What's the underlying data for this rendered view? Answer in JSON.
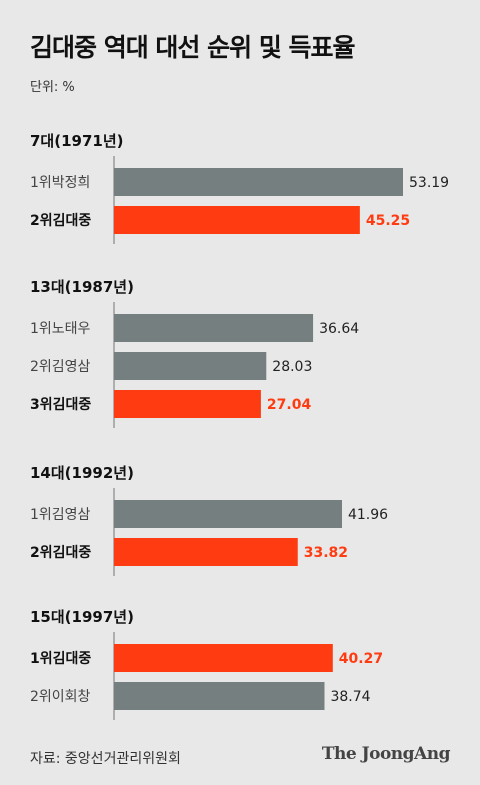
{
  "title": "김대중 역대 대선 순위 및 득표율",
  "unit": "단위: %",
  "source": "자료: 중앙선거관리위원회",
  "brand": "The JoongAng",
  "colors": {
    "highlight": "#ff3b12",
    "other": "#757f80",
    "axis": "#9a9a9a"
  },
  "chart_data": {
    "type": "bar",
    "orientation": "horizontal",
    "xlim": [
      0,
      60
    ],
    "groups": [
      {
        "label": "7대(1971년)",
        "bars": [
          {
            "label": "1위박정희",
            "value": 53.19,
            "highlight": false
          },
          {
            "label": "2위김대중",
            "value": 45.25,
            "highlight": true
          }
        ]
      },
      {
        "label": "13대(1987년)",
        "bars": [
          {
            "label": "1위노태우",
            "value": 36.64,
            "highlight": false
          },
          {
            "label": "2위김영삼",
            "value": 28.03,
            "highlight": false
          },
          {
            "label": "3위김대중",
            "value": 27.04,
            "highlight": true
          }
        ]
      },
      {
        "label": "14대(1992년)",
        "bars": [
          {
            "label": "1위김영삼",
            "value": 41.96,
            "highlight": false
          },
          {
            "label": "2위김대중",
            "value": 33.82,
            "highlight": true
          }
        ]
      },
      {
        "label": "15대(1997년)",
        "bars": [
          {
            "label": "1위김대중",
            "value": 40.27,
            "highlight": true
          },
          {
            "label": "2위이회창",
            "value": 38.74,
            "highlight": false
          }
        ]
      }
    ]
  }
}
